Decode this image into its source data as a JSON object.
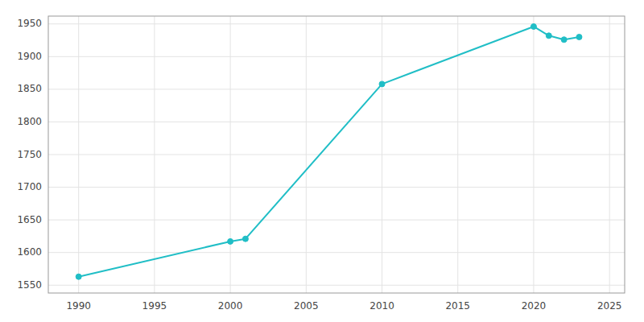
{
  "chart_data": {
    "type": "line",
    "x": [
      1990,
      2000,
      2001,
      2010,
      2020,
      2021,
      2022,
      2023
    ],
    "values": [
      1563,
      1617,
      1621,
      1858,
      1946,
      1932,
      1926,
      1930
    ],
    "color": "#20BEC6",
    "marker": "circle",
    "xlim": [
      1988,
      2026
    ],
    "ylim": [
      1538,
      1962
    ],
    "xticks": [
      1990,
      1995,
      2000,
      2005,
      2010,
      2015,
      2020,
      2025
    ],
    "yticks": [
      1550,
      1600,
      1650,
      1700,
      1750,
      1800,
      1850,
      1900,
      1950
    ],
    "grid": true
  }
}
